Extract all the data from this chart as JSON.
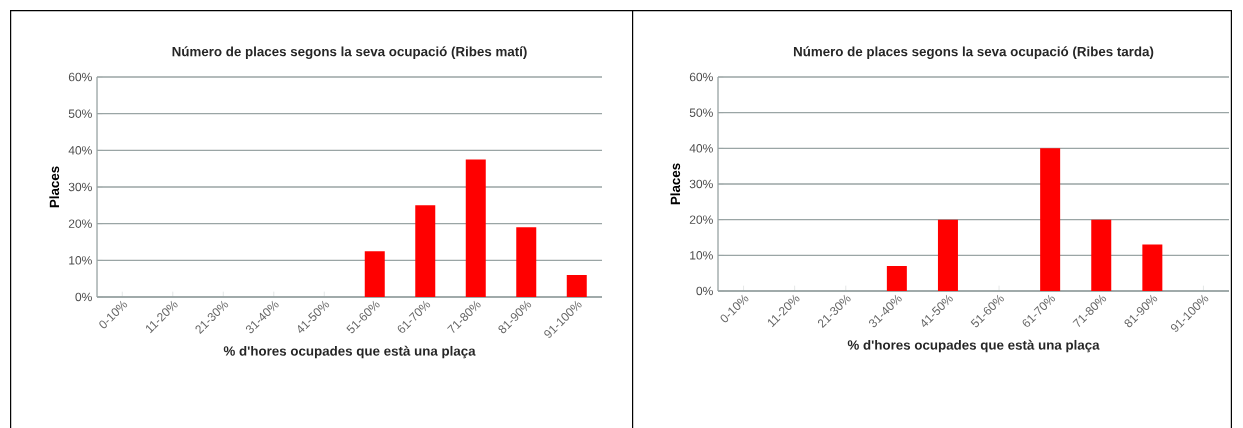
{
  "chart_data": [
    {
      "type": "bar",
      "title": "Número de places segons la seva ocupació  (Ribes matí)",
      "xlabel": "% d'hores ocupades que està una plaça",
      "ylabel": "Places",
      "categories": [
        "0-10%",
        "11-20%",
        "21-30%",
        "31-40%",
        "41-50%",
        "51-60%",
        "61-70%",
        "71-80%",
        "81-90%",
        "91-100%"
      ],
      "values": [
        0,
        0,
        0,
        0,
        0,
        12.5,
        25,
        37.5,
        19,
        6
      ],
      "color": "#ff0000",
      "ylim": [
        0,
        60
      ],
      "yticks": [
        {
          "value": 0,
          "label": "0%"
        },
        {
          "value": 10,
          "label": "10%"
        },
        {
          "value": 20,
          "label": "20%"
        },
        {
          "value": 30,
          "label": "30%"
        },
        {
          "value": 40,
          "label": "40%"
        },
        {
          "value": 50,
          "label": "50%"
        },
        {
          "value": 60,
          "label": "60%"
        }
      ],
      "grid": "y"
    },
    {
      "type": "bar",
      "title": "Número de places segons la seva ocupació  (Ribes tarda)",
      "xlabel": "% d'hores ocupades que està una plaça",
      "ylabel": "Places",
      "categories": [
        "0-10%",
        "11-20%",
        "21-30%",
        "31-40%",
        "41-50%",
        "51-60%",
        "61-70%",
        "71-80%",
        "81-90%",
        "91-100%"
      ],
      "values": [
        0,
        0,
        0,
        7,
        20,
        0,
        40,
        20,
        13,
        0
      ],
      "color": "#ff0000",
      "ylim": [
        0,
        60
      ],
      "yticks": [
        {
          "value": 0,
          "label": "0%"
        },
        {
          "value": 10,
          "label": "10%"
        },
        {
          "value": 20,
          "label": "20%"
        },
        {
          "value": 30,
          "label": "30%"
        },
        {
          "value": 40,
          "label": "40%"
        },
        {
          "value": 50,
          "label": "50%"
        },
        {
          "value": 60,
          "label": "60%"
        }
      ],
      "grid": "y"
    }
  ]
}
